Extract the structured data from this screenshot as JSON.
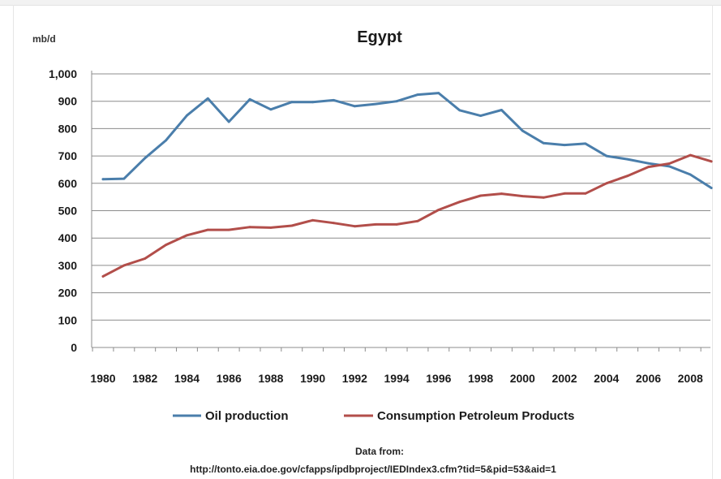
{
  "chart_data": {
    "type": "line",
    "title": "Egypt",
    "ylabel": "mb/d",
    "xlabel": "",
    "ylim": [
      0,
      1000
    ],
    "yticks": [
      0,
      100,
      200,
      300,
      400,
      500,
      600,
      700,
      800,
      900,
      1000
    ],
    "ytick_labels": [
      "0",
      "100",
      "200",
      "300",
      "400",
      "500",
      "600",
      "700",
      "800",
      "900",
      "1,000"
    ],
    "xticks": [
      "1980",
      "1982",
      "1984",
      "1986",
      "1988",
      "1990",
      "1992",
      "1994",
      "1996",
      "1998",
      "2000",
      "2002",
      "2004",
      "2006",
      "2008"
    ],
    "x": [
      1980,
      1981,
      1982,
      1983,
      1984,
      1985,
      1986,
      1987,
      1988,
      1989,
      1990,
      1991,
      1992,
      1993,
      1994,
      1995,
      1996,
      1997,
      1998,
      1999,
      2000,
      2001,
      2002,
      2003,
      2004,
      2005,
      2006,
      2007,
      2008,
      2009
    ],
    "grid": true,
    "legend_position": "bottom",
    "series": [
      {
        "name": "Oil production",
        "color": "#4a7eab",
        "values": [
          615,
          617,
          692,
          757,
          848,
          910,
          825,
          907,
          870,
          897,
          897,
          904,
          882,
          890,
          900,
          924,
          930,
          867,
          847,
          868,
          792,
          747,
          740,
          745,
          700,
          688,
          673,
          662,
          632,
          583
        ]
      },
      {
        "name": "Consumption Petroleum Products",
        "color": "#b24e4a",
        "values": [
          260,
          300,
          325,
          375,
          410,
          430,
          430,
          440,
          438,
          445,
          465,
          455,
          443,
          450,
          450,
          462,
          503,
          532,
          555,
          562,
          553,
          548,
          563,
          563,
          600,
          627,
          660,
          672,
          703,
          680
        ]
      }
    ]
  },
  "source_note": {
    "line1": "Data from:",
    "line2": "http://tonto.eia.doe.gov/cfapps/ipdbproject/IEDIndex3.cfm?tid=5&pid=53&aid=1"
  }
}
